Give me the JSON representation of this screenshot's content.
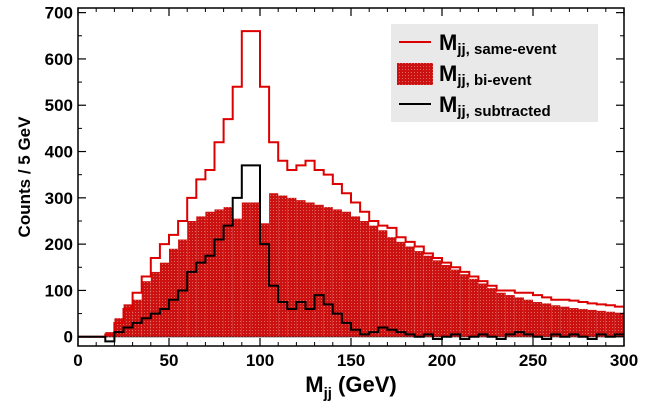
{
  "chart_data": {
    "type": "histogram",
    "x_label_main": "M",
    "x_label_sub": "jj",
    "x_label_unit": "(GeV)",
    "y_label": "Counts / 5 GeV",
    "xlim": [
      0,
      300
    ],
    "ylim": [
      -20,
      710
    ],
    "bin_width": 5,
    "x_ticks": [
      0,
      50,
      100,
      150,
      200,
      250,
      300
    ],
    "y_ticks": [
      0,
      100,
      200,
      300,
      400,
      500,
      600,
      700
    ],
    "legend_position": "top-right",
    "legend": [
      {
        "key": "same",
        "main": "M",
        "sub": "jj, same-event"
      },
      {
        "key": "bi",
        "main": "M",
        "sub": "jj, bi-event"
      },
      {
        "key": "sub",
        "main": "M",
        "sub": "jj, subtracted"
      }
    ],
    "colors": {
      "same": "#dd0000",
      "bi_fill": "#cc1111",
      "sub": "#000000",
      "legend_bg": "#e9e9e9"
    },
    "series": [
      {
        "key": "same",
        "style": "line",
        "bin_edges_start": 0,
        "values": [
          0,
          0,
          0,
          5,
          30,
          60,
          95,
          130,
          170,
          200,
          220,
          250,
          300,
          340,
          360,
          420,
          470,
          540,
          660,
          660,
          540,
          420,
          380,
          360,
          370,
          380,
          360,
          350,
          330,
          310,
          290,
          270,
          250,
          240,
          235,
          215,
          205,
          195,
          180,
          170,
          160,
          150,
          140,
          130,
          120,
          110,
          100,
          100,
          95,
          95,
          90,
          85,
          80,
          80,
          78,
          75,
          72,
          70,
          68,
          65
        ]
      },
      {
        "key": "bi",
        "style": "filled",
        "bin_edges_start": 0,
        "values": [
          0,
          0,
          0,
          10,
          40,
          70,
          80,
          120,
          140,
          160,
          190,
          210,
          250,
          260,
          270,
          275,
          280,
          255,
          290,
          290,
          245,
          310,
          305,
          300,
          295,
          290,
          285,
          280,
          275,
          270,
          260,
          250,
          240,
          230,
          215,
          205,
          195,
          185,
          175,
          165,
          155,
          145,
          135,
          125,
          115,
          105,
          95,
          90,
          85,
          80,
          75,
          72,
          68,
          65,
          62,
          60,
          58,
          56,
          54,
          52
        ]
      },
      {
        "key": "sub",
        "style": "line",
        "bin_edges_start": 0,
        "values": [
          0,
          0,
          0,
          -10,
          10,
          20,
          30,
          40,
          50,
          60,
          80,
          100,
          140,
          160,
          175,
          210,
          240,
          300,
          370,
          370,
          200,
          110,
          75,
          60,
          75,
          60,
          90,
          70,
          50,
          30,
          15,
          5,
          10,
          20,
          15,
          10,
          5,
          0,
          5,
          -5,
          0,
          5,
          -5,
          0,
          5,
          0,
          -5,
          5,
          10,
          5,
          0,
          -5,
          5,
          0,
          5,
          0,
          -5,
          5,
          0,
          5
        ]
      }
    ]
  }
}
